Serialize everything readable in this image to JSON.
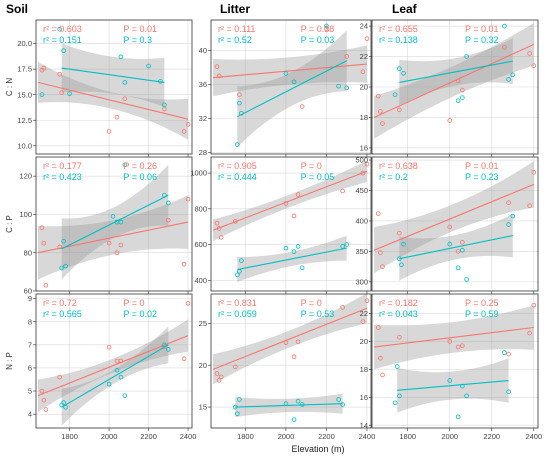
{
  "figure": {
    "xlabel": "Elevation (m)",
    "colors": {
      "series_a": "#F8766D",
      "series_b": "#00BFC4",
      "band": "#999999",
      "grid": "#d9d9d9"
    }
  },
  "chart_data": [
    {
      "type": "scatter",
      "title": "Soil",
      "ylabel": "C : N",
      "xlim": [
        1630,
        2420
      ],
      "ylim": [
        9.2,
        22.3
      ],
      "xticks": [
        1800,
        2000,
        2200,
        2400
      ],
      "yticks": [
        10.0,
        12.5,
        15.0,
        17.5,
        20.0
      ],
      "ytick_labels": [
        "10.0",
        "12.5",
        "15.0",
        "17.5",
        "20.0"
      ],
      "stats": [
        {
          "r2": "r² = 0.603",
          "p": "P = 0.01"
        },
        {
          "r2": "r² = 0.151",
          "p": "P = 0.3"
        }
      ],
      "series": [
        {
          "x": [
            1660,
            1670,
            1750,
            1760,
            2000,
            2040,
            2080,
            2280,
            2380,
            2400
          ],
          "y": [
            17.4,
            17.6,
            17.0,
            15.2,
            11.4,
            12.8,
            14.6,
            13.6,
            11.4,
            12.1
          ],
          "fit": [
            1640,
            16.2,
            2400,
            12.6
          ],
          "band": [
            0.8,
            2.0
          ]
        },
        {
          "x": [
            1660,
            1750,
            1770,
            1800,
            2060,
            2080,
            2200,
            2260,
            2280
          ],
          "y": [
            15.0,
            21.4,
            19.3,
            15.1,
            18.7,
            16.2,
            17.8,
            16.3,
            14.0
          ],
          "fit": [
            1760,
            17.6,
            2280,
            16.2
          ],
          "band": [
            1.8,
            2.4
          ]
        }
      ]
    },
    {
      "type": "scatter",
      "title": "Litter",
      "ylabel": "",
      "xlim": [
        1630,
        2420
      ],
      "ylim": [
        27.8,
        43.6
      ],
      "xticks": [
        1800,
        2000,
        2200,
        2400
      ],
      "yticks": [
        28,
        32,
        36,
        40
      ],
      "ytick_labels": [
        "28",
        "32",
        "36",
        "40"
      ],
      "stats": [
        {
          "r2": "r² = 0.111",
          "p": "P = 0.38"
        },
        {
          "r2": "r² = 0.52",
          "p": "P = 0.03"
        }
      ],
      "series": [
        {
          "x": [
            1660,
            1670,
            1770,
            2040,
            2080,
            2200,
            2300,
            2380,
            2400
          ],
          "y": [
            38.1,
            37.0,
            34.8,
            36.3,
            33.4,
            42.6,
            39.3,
            37.5,
            41.4
          ],
          "fit": [
            1640,
            36.8,
            2400,
            38.4
          ],
          "band": [
            1.6,
            2.2
          ]
        },
        {
          "x": [
            1760,
            1770,
            1780,
            2000,
            2040,
            2200,
            2260,
            2300
          ],
          "y": [
            28.9,
            33.8,
            32.6,
            37.3,
            36.3,
            42.9,
            35.8,
            35.6
          ],
          "fit": [
            1760,
            32.2,
            2300,
            38.8
          ],
          "band": [
            2.0,
            3.6
          ]
        }
      ]
    },
    {
      "type": "scatter",
      "title": "Leaf",
      "ylabel": "",
      "xlim": [
        1630,
        2420
      ],
      "ylim": [
        15.6,
        24.4
      ],
      "xticks": [
        1800,
        2000,
        2200,
        2400
      ],
      "yticks": [
        16,
        18,
        20,
        22,
        24
      ],
      "ytick_labels": [
        "16",
        "18",
        "20",
        "22",
        "24"
      ],
      "stats": [
        {
          "r2": "r² = 0.655",
          "p": "P = 0.01"
        },
        {
          "r2": "r² = 0.138",
          "p": "P = 0.32"
        }
      ],
      "series": [
        {
          "x": [
            1660,
            1670,
            1680,
            1760,
            2000,
            2040,
            2060,
            2260,
            2380,
            2400
          ],
          "y": [
            19.4,
            18.4,
            17.6,
            18.5,
            17.8,
            20.4,
            19.8,
            22.6,
            22.2,
            21.4
          ],
          "fit": [
            1640,
            18.0,
            2400,
            22.8
          ],
          "band": [
            1.0,
            1.4
          ]
        },
        {
          "x": [
            1740,
            1760,
            1780,
            2040,
            2060,
            2080,
            2260,
            2280,
            2300
          ],
          "y": [
            19.5,
            21.2,
            20.9,
            19.1,
            19.3,
            22.0,
            24.0,
            20.5,
            20.8
          ],
          "fit": [
            1760,
            20.3,
            2300,
            21.7
          ],
          "band": [
            0.9,
            1.5
          ]
        }
      ]
    },
    {
      "type": "scatter",
      "title": "",
      "ylabel": "C : P",
      "xlim": [
        1630,
        2420
      ],
      "ylim": [
        60,
        130
      ],
      "xticks": [
        1800,
        2000,
        2200,
        2400
      ],
      "yticks": [
        60,
        80,
        100,
        120
      ],
      "ytick_labels": [
        "60",
        "80",
        "100",
        "120"
      ],
      "stats": [
        {
          "r2": "r² = 0.177",
          "p": "P = 0.26"
        },
        {
          "r2": "r² = 0.423",
          "p": "P = 0.06"
        }
      ],
      "series": [
        {
          "x": [
            1660,
            1670,
            1680,
            1750,
            2000,
            2040,
            2060,
            2300,
            2380,
            2400
          ],
          "y": [
            93,
            85,
            63,
            83,
            85,
            80,
            84,
            97,
            74,
            108
          ],
          "fit": [
            1640,
            80,
            2400,
            96
          ],
          "band": [
            9,
            14
          ]
        },
        {
          "x": [
            1760,
            1770,
            1780,
            2020,
            2040,
            2060,
            2080,
            2280,
            2300
          ],
          "y": [
            72,
            86,
            73,
            99,
            96,
            96,
            126,
            110,
            106
          ],
          "fit": [
            1760,
            82,
            2300,
            110
          ],
          "band": [
            8,
            16
          ]
        }
      ]
    },
    {
      "type": "scatter",
      "title": "",
      "ylabel": "",
      "xlim": [
        1630,
        2420
      ],
      "ylim": [
        340,
        1090
      ],
      "xticks": [
        1800,
        2000,
        2200,
        2400
      ],
      "yticks": [
        400,
        600,
        800,
        1000
      ],
      "ytick_labels": [
        "400",
        "600",
        "800",
        "1000"
      ],
      "stats": [
        {
          "r2": "r² = 0.905",
          "p": "P = 0"
        },
        {
          "r2": "r² = 0.444",
          "p": "P = 0.05"
        }
      ],
      "series": [
        {
          "x": [
            1660,
            1670,
            1680,
            1750,
            2000,
            2040,
            2060,
            2280,
            2380,
            2400
          ],
          "y": [
            720,
            690,
            640,
            730,
            830,
            760,
            880,
            900,
            1000,
            1050
          ],
          "fit": [
            1640,
            680,
            2400,
            1010
          ],
          "band": [
            35,
            60
          ]
        },
        {
          "x": [
            1760,
            1770,
            1780,
            2000,
            2040,
            2060,
            2080,
            2280,
            2300
          ],
          "y": [
            430,
            450,
            510,
            580,
            560,
            590,
            470,
            590,
            600
          ],
          "fit": [
            1760,
            460,
            2300,
            580
          ],
          "band": [
            40,
            70
          ]
        }
      ]
    },
    {
      "type": "scatter",
      "title": "",
      "ylabel": "",
      "xlim": [
        1630,
        2420
      ],
      "ylim": [
        285,
        505
      ],
      "xticks": [
        1800,
        2000,
        2200,
        2400
      ],
      "yticks": [
        300,
        350,
        400,
        450,
        500
      ],
      "ytick_labels": [
        "300",
        "350",
        "400",
        "450",
        "500"
      ],
      "stats": [
        {
          "r2": "r² = 0.638",
          "p": "P = 0.01"
        },
        {
          "r2": "r² = 0.2",
          "p": "P = 0.23"
        }
      ],
      "series": [
        {
          "x": [
            1660,
            1670,
            1680,
            1760,
            2000,
            2040,
            2060,
            2280,
            2380,
            2400
          ],
          "y": [
            412,
            348,
            325,
            380,
            390,
            350,
            365,
            430,
            425,
            480
          ],
          "fit": [
            1640,
            352,
            2400,
            460
          ],
          "band": [
            22,
            38
          ]
        },
        {
          "x": [
            1760,
            1770,
            1780,
            2000,
            2040,
            2060,
            2080,
            2280,
            2300
          ],
          "y": [
            338,
            328,
            362,
            362,
            323,
            352,
            304,
            394,
            408
          ],
          "fit": [
            1760,
            338,
            2300,
            376
          ],
          "band": [
            20,
            36
          ]
        }
      ]
    },
    {
      "type": "scatter",
      "title": "",
      "ylabel": "N : P",
      "xlim": [
        1630,
        2420
      ],
      "ylim": [
        3.4,
        9.2
      ],
      "xticks": [
        1800,
        2000,
        2200,
        2400
      ],
      "yticks": [
        4,
        5,
        6,
        7,
        8,
        9
      ],
      "ytick_labels": [
        "4",
        "5",
        "6",
        "7",
        "8",
        "9"
      ],
      "stats": [
        {
          "r2": "r² = 0.72",
          "p": "P = 0"
        },
        {
          "r2": "r² = 0.565",
          "p": "P = 0.02"
        }
      ],
      "series": [
        {
          "x": [
            1660,
            1670,
            1680,
            1750,
            2000,
            2040,
            2060,
            2280,
            2380,
            2400
          ],
          "y": [
            5.0,
            4.6,
            4.2,
            5.6,
            6.9,
            6.3,
            6.3,
            6.9,
            6.4,
            8.8
          ],
          "fit": [
            1640,
            4.8,
            2400,
            7.4
          ],
          "band": [
            0.3,
            0.7
          ]
        },
        {
          "x": [
            1760,
            1770,
            1780,
            2000,
            2040,
            2060,
            2080,
            2280,
            2300
          ],
          "y": [
            4.4,
            4.5,
            4.3,
            5.3,
            5.9,
            5.6,
            4.8,
            7.0,
            6.8
          ],
          "fit": [
            1760,
            4.3,
            2300,
            7.0
          ],
          "band": [
            0.3,
            0.8
          ]
        }
      ]
    },
    {
      "type": "scatter",
      "title": "",
      "ylabel": "",
      "xlim": [
        1630,
        2420
      ],
      "ylim": [
        12.5,
        28.5
      ],
      "xticks": [
        1800,
        2000,
        2200,
        2400
      ],
      "yticks": [
        15,
        20,
        25
      ],
      "ytick_labels": [
        "15",
        "20",
        "25"
      ],
      "stats": [
        {
          "r2": "r² = 0.831",
          "p": "P = 0"
        },
        {
          "r2": "r² = 0.059",
          "p": "P = 0.53"
        }
      ],
      "series": [
        {
          "x": [
            1660,
            1670,
            1680,
            1750,
            2000,
            2040,
            2060,
            2280,
            2380,
            2400
          ],
          "y": [
            19.0,
            18.2,
            18.6,
            19.8,
            22.7,
            21.0,
            22.8,
            26.9,
            25.2,
            27.7
          ],
          "fit": [
            1640,
            19.5,
            2400,
            26.8
          ],
          "band": [
            1.0,
            1.8
          ]
        },
        {
          "x": [
            1750,
            1760,
            1770,
            2000,
            2040,
            2060,
            2080,
            2260,
            2280
          ],
          "y": [
            15.0,
            14.2,
            15.9,
            15.4,
            13.5,
            15.7,
            15.3,
            15.9,
            15.3
          ],
          "fit": [
            1750,
            15.0,
            2280,
            15.4
          ],
          "band": [
            0.8,
            1.2
          ]
        }
      ]
    },
    {
      "type": "scatter",
      "title": "",
      "ylabel": "",
      "xlim": [
        1630,
        2420
      ],
      "ylim": [
        13.8,
        23.4
      ],
      "xticks": [
        1800,
        2000,
        2200,
        2400
      ],
      "yticks": [
        14,
        16,
        18,
        20,
        22
      ],
      "ytick_labels": [
        "14",
        "16",
        "18",
        "20",
        "22"
      ],
      "stats": [
        {
          "r2": "r² = 0.182",
          "p": "P = 0.25"
        },
        {
          "r2": "r² = 0.043",
          "p": "P = 0.59"
        }
      ],
      "series": [
        {
          "x": [
            1660,
            1670,
            1680,
            1760,
            2000,
            2040,
            2060,
            2280,
            2380,
            2400
          ],
          "y": [
            21.0,
            18.8,
            17.6,
            20.3,
            20.0,
            19.6,
            19.7,
            19.1,
            20.6,
            22.6
          ],
          "fit": [
            1640,
            19.6,
            2400,
            21.0
          ],
          "band": [
            1.1,
            1.6
          ]
        },
        {
          "x": [
            1740,
            1750,
            1760,
            2000,
            2040,
            2060,
            2080,
            2260,
            2280
          ],
          "y": [
            15.6,
            18.2,
            16.1,
            17.2,
            14.6,
            16.8,
            16.1,
            19.2,
            16.4
          ],
          "fit": [
            1750,
            16.5,
            2280,
            17.2
          ],
          "band": [
            1.0,
            1.6
          ]
        }
      ]
    }
  ]
}
